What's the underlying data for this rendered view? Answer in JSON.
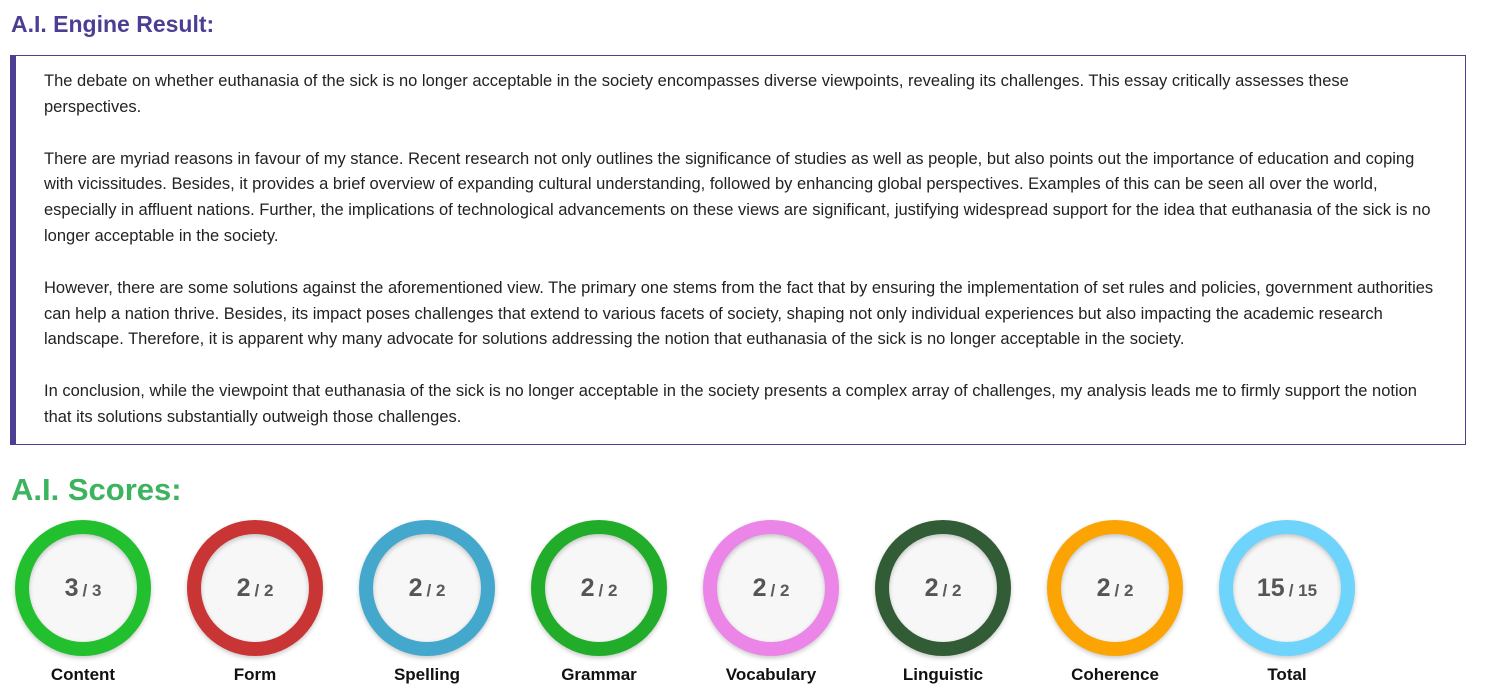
{
  "result": {
    "title": "A.I. Engine Result:",
    "paragraphs": [
      "The debate on whether euthanasia of the sick is no longer acceptable in the society encompasses diverse viewpoints, revealing its challenges. This essay critically assesses these perspectives.",
      "There are myriad reasons in favour of my stance. Recent research not only outlines the significance of studies as well as people, but also points out the importance of education and coping with vicissitudes. Besides, it provides a brief overview of expanding cultural understanding, followed by enhancing global perspectives. Examples of this can be seen all over the world, especially in affluent nations. Further, the implications of technological advancements on these views are significant, justifying widespread support for the idea that euthanasia of the sick is no longer acceptable in the society.",
      "However, there are some solutions against the aforementioned view. The primary one stems from the fact that by ensuring the implementation of set rules and policies, government authorities can help a nation thrive. Besides, its impact poses challenges that extend to various facets of society, shaping not only individual experiences but also impacting the academic research landscape. Therefore, it is apparent why many advocate for solutions addressing the notion that euthanasia of the sick is no longer acceptable in the society.",
      "In conclusion, while the viewpoint that euthanasia of the sick is no longer acceptable in the society presents a complex array of challenges, my analysis leads me to firmly support the notion that its solutions substantially outweigh those challenges."
    ]
  },
  "scores": {
    "title": "A.I. Scores:",
    "items": [
      {
        "label": "Content",
        "value": "3",
        "max": "/ 3",
        "color": "#22bf2f"
      },
      {
        "label": "Form",
        "value": "2",
        "max": "/ 2",
        "color": "#c93535"
      },
      {
        "label": "Spelling",
        "value": "2",
        "max": "/ 2",
        "color": "#44a8cd"
      },
      {
        "label": "Grammar",
        "value": "2",
        "max": "/ 2",
        "color": "#21ad29"
      },
      {
        "label": "Vocabulary",
        "value": "2",
        "max": "/ 2",
        "color": "#ec85e8"
      },
      {
        "label": "Linguistic",
        "value": "2",
        "max": "/ 2",
        "color": "#325c35"
      },
      {
        "label": "Coherence",
        "value": "2",
        "max": "/ 2",
        "color": "#fba404"
      },
      {
        "label": "Total",
        "value": "15",
        "max": "/ 15",
        "color": "#6ed4fb"
      }
    ]
  },
  "colors": {
    "result_title": "#4b3f93",
    "scores_title": "#3cb35f"
  }
}
